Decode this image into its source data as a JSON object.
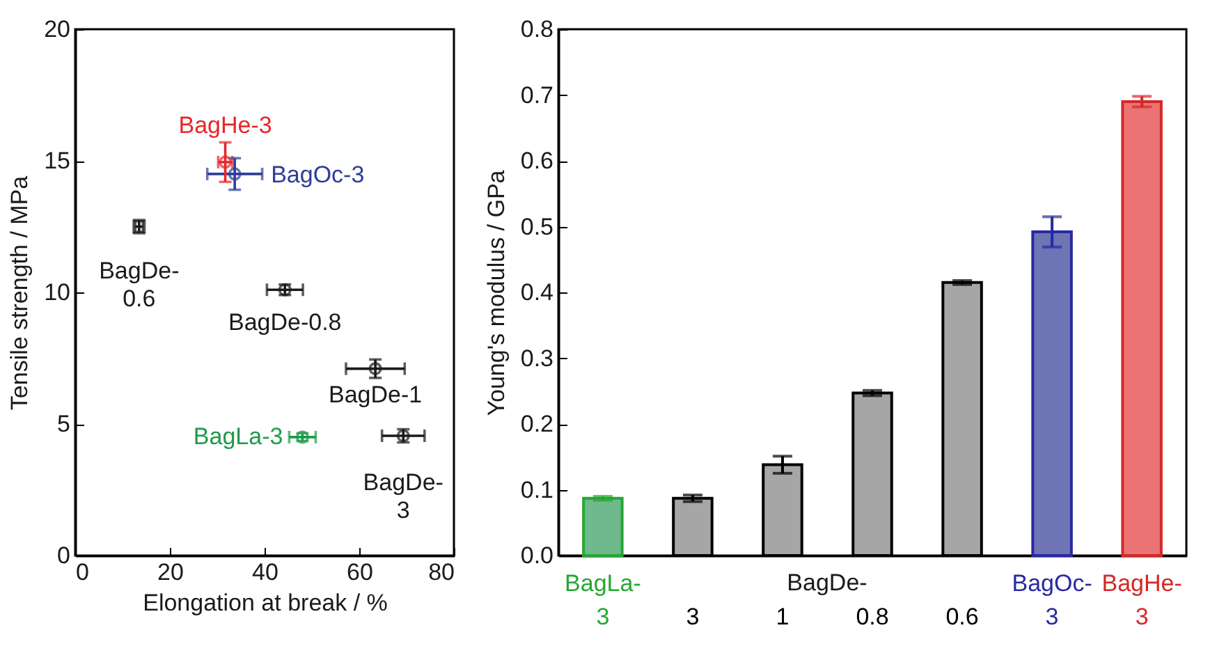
{
  "chart_data": [
    {
      "type": "scatter",
      "xlabel": "Elongation at break / %",
      "ylabel": "Tensile strength / MPa",
      "xlim": [
        0,
        80
      ],
      "ylim": [
        0,
        20
      ],
      "xticks": [
        0,
        20,
        40,
        60,
        80
      ],
      "yticks": [
        0,
        5,
        10,
        15,
        20
      ],
      "marker": "circle",
      "series": [
        {
          "name": "BagHe-3",
          "color": "#e8262b",
          "x": [
            31.7
          ],
          "values": [
            14.95
          ],
          "xerrors": [
            1.5
          ],
          "errors": [
            0.75
          ]
        },
        {
          "name": "BagOc-3",
          "color": "#2e3d98",
          "x": [
            33.7
          ],
          "values": [
            14.5
          ],
          "xerrors": [
            5.8
          ],
          "errors": [
            0.6
          ]
        },
        {
          "name": "BagDe-0.6",
          "color": "#1a1a1a",
          "marker": "square",
          "x": [
            13.5
          ],
          "values": [
            12.5
          ],
          "xerrors": [
            0.8
          ],
          "errors": [
            0.25
          ]
        },
        {
          "name": "BagDe-0.8",
          "color": "#1a1a1a",
          "x": [
            44.3
          ],
          "values": [
            10.1
          ],
          "xerrors": [
            3.8
          ],
          "errors": [
            0.2
          ]
        },
        {
          "name": "BagDe-1",
          "color": "#1a1a1a",
          "x": [
            63.4
          ],
          "values": [
            7.1
          ],
          "xerrors": [
            6.2
          ],
          "errors": [
            0.35
          ]
        },
        {
          "name": "BagLa-3",
          "color": "#1e9a4a",
          "x": [
            48.0
          ],
          "values": [
            4.5
          ],
          "xerrors": [
            2.8
          ],
          "errors": [
            0.15
          ]
        },
        {
          "name": "BagDe-3",
          "color": "#1a1a1a",
          "x": [
            69.3
          ],
          "values": [
            4.55
          ],
          "xerrors": [
            4.5
          ],
          "errors": [
            0.25
          ]
        }
      ]
    },
    {
      "type": "bar",
      "ylabel": "Young's modulus / GPa",
      "categories": [
        "BagLa-3",
        "3",
        "1",
        "0.8",
        "0.6",
        "BagOc-3",
        "BagHe-3"
      ],
      "values": [
        0.087,
        0.087,
        0.138,
        0.247,
        0.415,
        0.492,
        0.69
      ],
      "errors": [
        0.003,
        0.005,
        0.013,
        0.004,
        0.003,
        0.023,
        0.008
      ],
      "colors": [
        "#6fb98f",
        "#a6a6a6",
        "#a6a6a6",
        "#a6a6a6",
        "#a6a6a6",
        "#6f74b4",
        "#ec7373"
      ],
      "ylim": [
        0,
        0.8
      ],
      "yticks": [
        {
          "value": 0,
          "label": "0.0"
        },
        0.1,
        0.2,
        0.3,
        0.4,
        0.5,
        0.6,
        0.7,
        0.8
      ],
      "annotations": [
        "BagDe-"
      ]
    }
  ]
}
